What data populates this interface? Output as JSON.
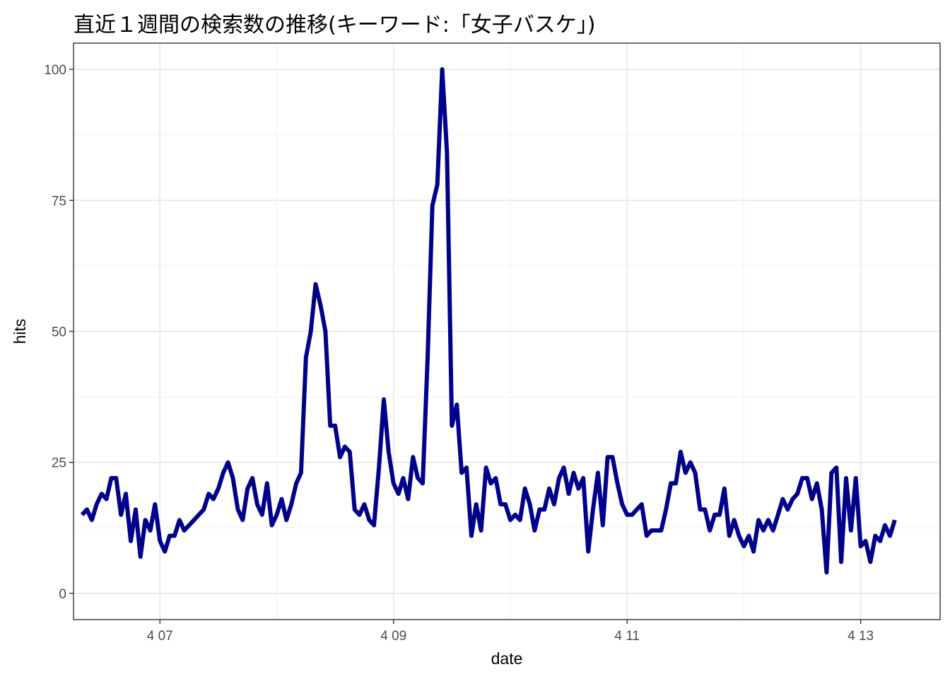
{
  "chart_data": {
    "type": "line",
    "title": "直近１週間の検索数の推移(キーワード:「女子バスケ」)",
    "xlabel": "date",
    "ylabel": "hits",
    "ylim": [
      0,
      100
    ],
    "yticks": [
      0,
      25,
      50,
      75,
      100
    ],
    "xticks": [
      {
        "value": 7,
        "label": "4 07"
      },
      {
        "value": 9,
        "label": "4 09"
      },
      {
        "value": 11,
        "label": "4 11"
      },
      {
        "value": 13,
        "label": "4 13"
      }
    ],
    "grid": true,
    "line_color": "#00008B",
    "series": [
      {
        "x": [
          6.333,
          6.375,
          6.417,
          6.458,
          6.5,
          6.542,
          6.583,
          6.625,
          6.667,
          6.708,
          6.75,
          6.792,
          6.833,
          6.875,
          6.917,
          6.958,
          7.0,
          7.042,
          7.083,
          7.125,
          7.167,
          7.208,
          7.25,
          7.292,
          7.333,
          7.375,
          7.417,
          7.458,
          7.5,
          7.542,
          7.583,
          7.625,
          7.667,
          7.708,
          7.75,
          7.792,
          7.833,
          7.875,
          7.917,
          7.958,
          8.0,
          8.042,
          8.083,
          8.125,
          8.167,
          8.208,
          8.25,
          8.292,
          8.333,
          8.375,
          8.417,
          8.458,
          8.5,
          8.542,
          8.583,
          8.625,
          8.667,
          8.708,
          8.75,
          8.792,
          8.833,
          8.875,
          8.917,
          8.958,
          9.0,
          9.042,
          9.083,
          9.125,
          9.167,
          9.208,
          9.25,
          9.292,
          9.333,
          9.375,
          9.417,
          9.458,
          9.5,
          9.542,
          9.583,
          9.625,
          9.667,
          9.708,
          9.75,
          9.792,
          9.833,
          9.875,
          9.917,
          9.958,
          10.0,
          10.042,
          10.083,
          10.125,
          10.167,
          10.208,
          10.25,
          10.292,
          10.333,
          10.375,
          10.417,
          10.458,
          10.5,
          10.542,
          10.583,
          10.625,
          10.667,
          10.708,
          10.75,
          10.792,
          10.833,
          10.875,
          10.917,
          10.958,
          11.0,
          11.042,
          11.083,
          11.125,
          11.167,
          11.208,
          11.25,
          11.292,
          11.333,
          11.375,
          11.417,
          11.458,
          11.5,
          11.542,
          11.583,
          11.625,
          11.667,
          11.708,
          11.75,
          11.792,
          11.833,
          11.875,
          11.917,
          11.958,
          12.0,
          12.042,
          12.083,
          12.125,
          12.167,
          12.208,
          12.25,
          12.292,
          12.333,
          12.375,
          12.417,
          12.458,
          12.5,
          12.542,
          12.583,
          12.625,
          12.667,
          12.708,
          12.75,
          12.792,
          12.833,
          12.875,
          12.917,
          12.958,
          13.0,
          13.042,
          13.083,
          13.125,
          13.167,
          13.208,
          13.25,
          13.292
        ],
        "y": [
          15,
          16,
          14,
          17,
          19,
          18,
          22,
          22,
          15,
          19,
          10,
          16,
          7,
          14,
          12,
          17,
          10,
          8,
          11,
          11,
          14,
          12,
          13,
          14,
          15,
          16,
          19,
          18,
          20,
          23,
          25,
          22,
          16,
          14,
          20,
          22,
          17,
          15,
          21,
          13,
          15,
          18,
          14,
          17,
          21,
          23,
          45,
          50,
          59,
          55,
          50,
          32,
          32,
          26,
          28,
          27,
          16,
          15,
          17,
          14,
          13,
          24,
          37,
          27,
          21,
          19,
          22,
          18,
          26,
          22,
          21,
          45,
          74,
          78,
          100,
          84,
          32,
          36,
          23,
          24,
          11,
          17,
          12,
          24,
          21,
          22,
          17,
          17,
          14,
          15,
          14,
          20,
          17,
          12,
          16,
          16,
          20,
          17,
          22,
          24,
          19,
          23,
          20,
          22,
          8,
          16,
          23,
          13,
          26,
          26,
          21,
          17,
          15,
          15,
          16,
          17,
          11,
          12,
          12,
          12,
          16,
          21,
          21,
          27,
          23,
          25,
          23,
          16,
          16,
          12,
          15,
          15,
          20,
          11,
          14,
          11,
          9,
          11,
          8,
          14,
          12,
          14,
          12,
          15,
          18,
          16,
          18,
          19,
          22,
          22,
          18,
          21,
          16,
          4,
          23,
          24,
          6,
          22,
          12,
          22,
          9,
          10,
          6,
          11,
          10,
          13,
          11,
          14
        ]
      }
    ]
  }
}
